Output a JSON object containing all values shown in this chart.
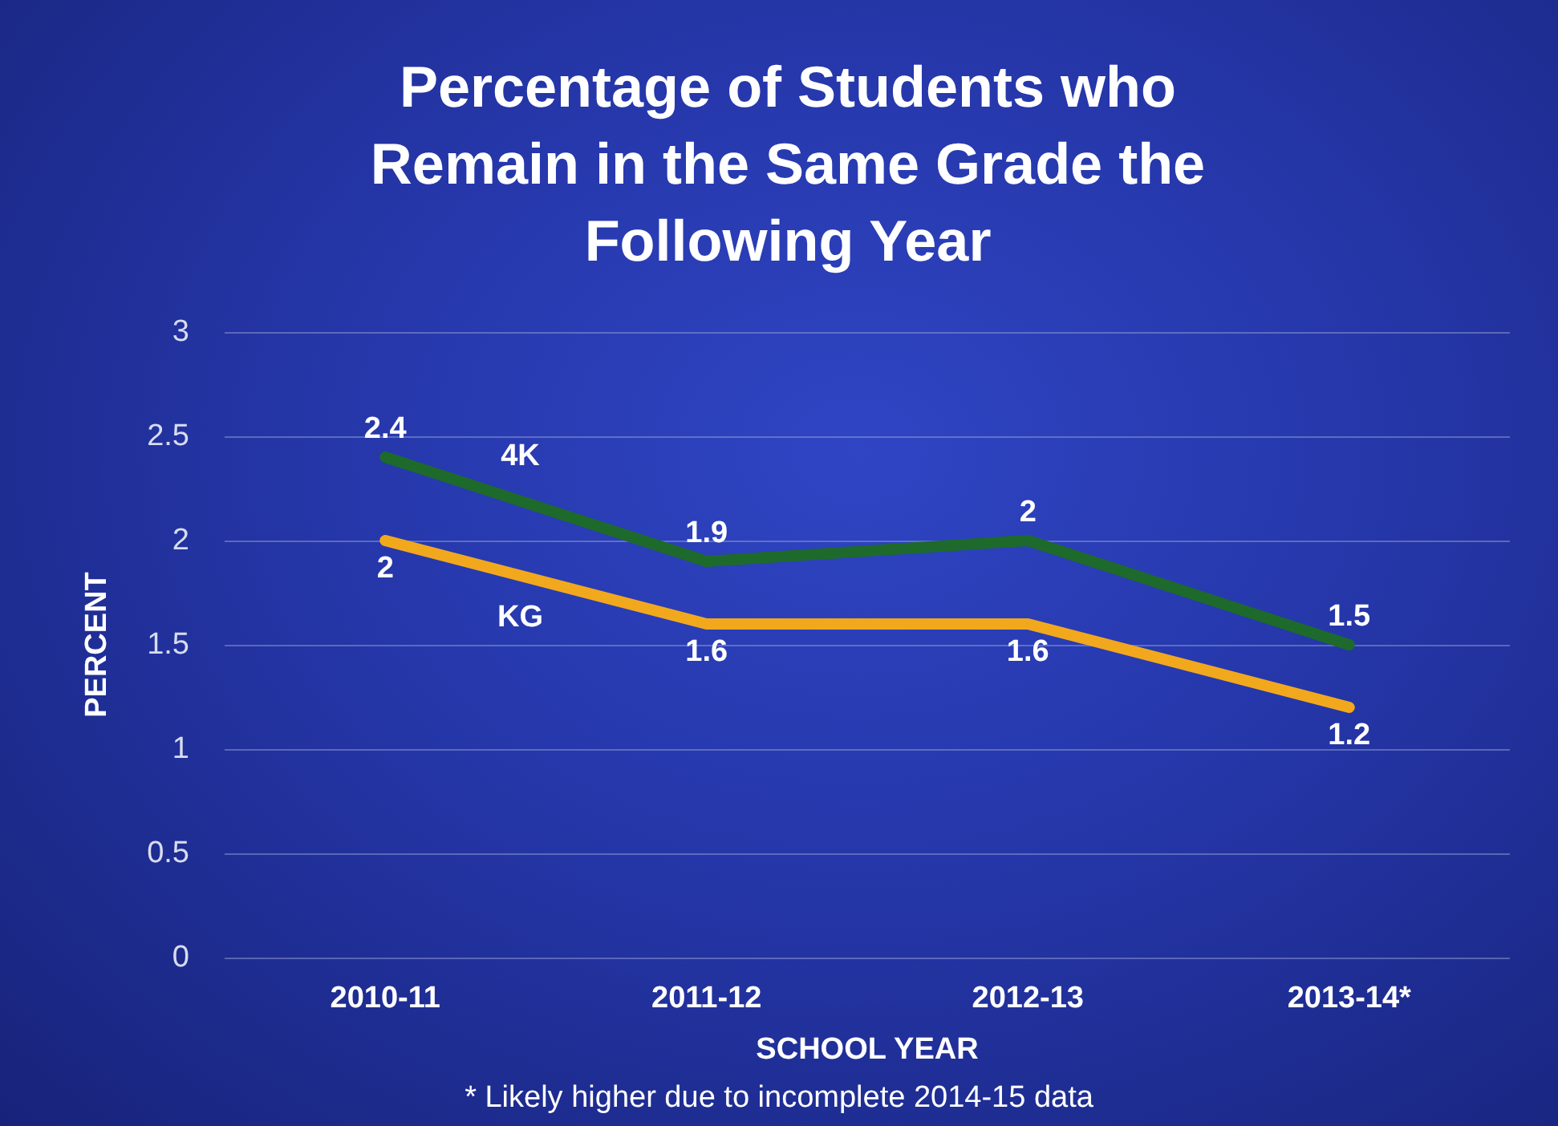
{
  "chart_data": {
    "type": "line",
    "title": "Percentage of Students who\nRemain in the Same Grade the\nFollowing Year",
    "xlabel": "SCHOOL YEAR",
    "ylabel": "PERCENT",
    "categories": [
      "2010-11",
      "2011-12",
      "2012-13",
      "2013-14*"
    ],
    "series": [
      {
        "name": "4K",
        "color": "#1d6a2c",
        "values": [
          2.4,
          1.9,
          2,
          1.5
        ]
      },
      {
        "name": "KG",
        "color": "#f2a81d",
        "values": [
          2,
          1.6,
          1.6,
          1.2
        ]
      }
    ],
    "ylim": [
      0,
      3
    ],
    "yticks": [
      0,
      0.5,
      1,
      1.5,
      2,
      2.5,
      3
    ],
    "grid": "y",
    "legend": false,
    "marker": "none",
    "line_style": "solid",
    "data_labels": true,
    "annotations": [
      "* Likely higher due to incomplete 2014-15 data"
    ]
  }
}
